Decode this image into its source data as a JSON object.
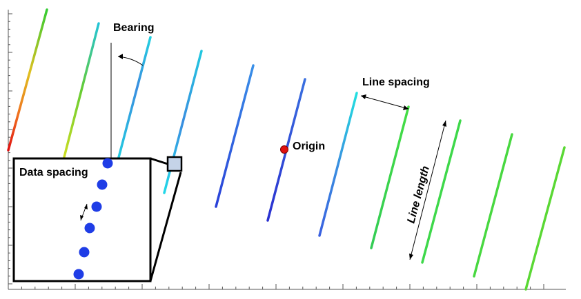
{
  "labels": {
    "bearing": "Bearing",
    "line_spacing": "Line spacing",
    "origin": "Origin",
    "line_length": "Line length",
    "data_spacing": "Data spacing"
  },
  "colors": {
    "origin_marker": "#e01010",
    "data_point": "#1f3de6",
    "inset_box_fill": "#c5d3e8",
    "axis": "#555555",
    "line_colors_scheme": "gradient: red / yellow / green / cyan / blue"
  }
}
